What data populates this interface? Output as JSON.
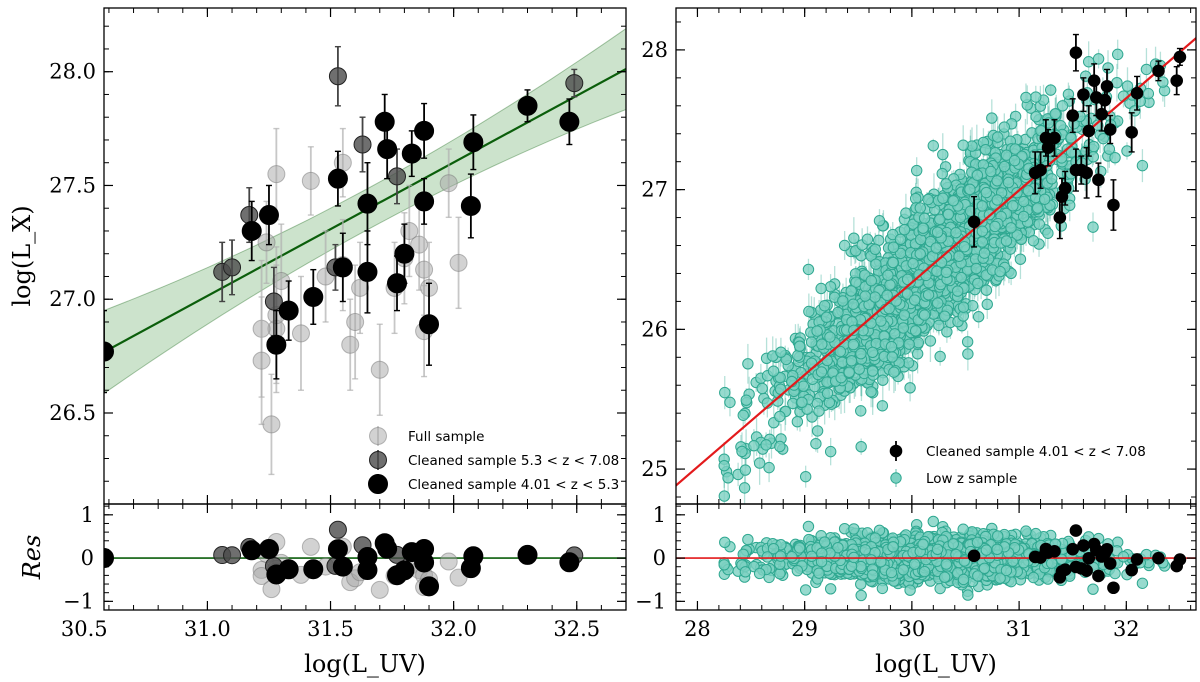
{
  "chart_data": [
    {
      "panel": "left",
      "type": "scatter",
      "xlabel": "log(L_UV)",
      "ylabel": "log(L_X)",
      "reslabel": "Res",
      "xlim": [
        30.58,
        32.7
      ],
      "ylim": [
        26.1,
        28.28
      ],
      "reslim": [
        -1.2,
        1.25
      ],
      "xticks": [
        "30.5",
        "31.0",
        "31.5",
        "32.0",
        "32.5"
      ],
      "yticks": [
        "26.5",
        "27.0",
        "27.5",
        "28.0"
      ],
      "resticks": [
        "1",
        "0",
        "−1"
      ],
      "fit": {
        "color": "#0b5e0b",
        "band_color": "#8fc28f",
        "slope": 0.5866,
        "intercept": 8.83,
        "band_left": 0.1,
        "band_right": 0.08
      },
      "series": [
        {
          "name": "Full sample",
          "style": "full",
          "points": [
            {
              "x": 31.28,
              "y": 27.55,
              "e": 0.2
            },
            {
              "x": 31.24,
              "y": 27.25,
              "e": 0.18
            },
            {
              "x": 31.28,
              "y": 26.87,
              "e": 0.28
            },
            {
              "x": 31.22,
              "y": 26.87,
              "e": 0.3
            },
            {
              "x": 31.22,
              "y": 26.73,
              "e": 0.28
            },
            {
              "x": 31.26,
              "y": 26.45,
              "e": 0.22
            },
            {
              "x": 31.3,
              "y": 27.08,
              "e": 0.25
            },
            {
              "x": 31.28,
              "y": 26.93,
              "e": 0.3
            },
            {
              "x": 31.38,
              "y": 26.85,
              "e": 0.25
            },
            {
              "x": 31.42,
              "y": 27.52,
              "e": 0.15
            },
            {
              "x": 31.48,
              "y": 27.1,
              "e": 0.2
            },
            {
              "x": 31.55,
              "y": 27.6,
              "e": 0.15
            },
            {
              "x": 31.55,
              "y": 27.15,
              "e": 0.2
            },
            {
              "x": 31.58,
              "y": 26.8,
              "e": 0.2
            },
            {
              "x": 31.6,
              "y": 26.9,
              "e": 0.25
            },
            {
              "x": 31.62,
              "y": 27.05,
              "e": 0.2
            },
            {
              "x": 31.7,
              "y": 26.69,
              "e": 0.2
            },
            {
              "x": 31.76,
              "y": 27.05,
              "e": 0.2
            },
            {
              "x": 31.8,
              "y": 27.18,
              "e": 0.2
            },
            {
              "x": 31.82,
              "y": 27.3,
              "e": 0.2
            },
            {
              "x": 31.86,
              "y": 27.24,
              "e": 0.2
            },
            {
              "x": 31.88,
              "y": 27.13,
              "e": 0.2
            },
            {
              "x": 31.9,
              "y": 27.05,
              "e": 0.2
            },
            {
              "x": 31.88,
              "y": 26.86,
              "e": 0.2
            },
            {
              "x": 31.98,
              "y": 27.51,
              "e": 0.15
            },
            {
              "x": 32.02,
              "y": 27.16,
              "e": 0.2
            }
          ]
        },
        {
          "name": "Cleaned sample 5.3 < z < 7.08",
          "style": "mid",
          "points": [
            {
              "x": 31.06,
              "y": 27.12,
              "e": 0.13
            },
            {
              "x": 31.1,
              "y": 27.14,
              "e": 0.12
            },
            {
              "x": 31.17,
              "y": 27.37,
              "e": 0.12
            },
            {
              "x": 31.27,
              "y": 26.99,
              "e": 0.15
            },
            {
              "x": 31.53,
              "y": 27.98,
              "e": 0.13
            },
            {
              "x": 31.52,
              "y": 27.14,
              "e": 0.1
            },
            {
              "x": 31.63,
              "y": 27.68,
              "e": 0.12
            },
            {
              "x": 31.77,
              "y": 27.54,
              "e": 0.12
            },
            {
              "x": 32.49,
              "y": 27.95,
              "e": 0.06
            }
          ]
        },
        {
          "name": "Cleaned sample 4.01 < z < 5.3",
          "style": "dark",
          "points": [
            {
              "x": 30.58,
              "y": 26.77,
              "e": 0.18
            },
            {
              "x": 31.18,
              "y": 27.3,
              "e": 0.13
            },
            {
              "x": 31.25,
              "y": 27.37,
              "e": 0.13
            },
            {
              "x": 31.28,
              "y": 26.8,
              "e": 0.15
            },
            {
              "x": 31.33,
              "y": 26.95,
              "e": 0.13
            },
            {
              "x": 31.43,
              "y": 27.01,
              "e": 0.12
            },
            {
              "x": 31.53,
              "y": 27.53,
              "e": 0.12
            },
            {
              "x": 31.55,
              "y": 27.14,
              "e": 0.15
            },
            {
              "x": 31.65,
              "y": 27.12,
              "e": 0.18
            },
            {
              "x": 31.65,
              "y": 27.42,
              "e": 0.18
            },
            {
              "x": 31.72,
              "y": 27.78,
              "e": 0.12
            },
            {
              "x": 31.73,
              "y": 27.66,
              "e": 0.13
            },
            {
              "x": 31.77,
              "y": 27.07,
              "e": 0.12
            },
            {
              "x": 31.8,
              "y": 27.2,
              "e": 0.13
            },
            {
              "x": 31.83,
              "y": 27.64,
              "e": 0.1
            },
            {
              "x": 31.88,
              "y": 27.74,
              "e": 0.12
            },
            {
              "x": 31.88,
              "y": 27.43,
              "e": 0.1
            },
            {
              "x": 31.9,
              "y": 26.89,
              "e": 0.18
            },
            {
              "x": 32.07,
              "y": 27.41,
              "e": 0.14
            },
            {
              "x": 32.08,
              "y": 27.69,
              "e": 0.12
            },
            {
              "x": 32.3,
              "y": 27.85,
              "e": 0.07
            },
            {
              "x": 32.47,
              "y": 27.78,
              "e": 0.1
            }
          ]
        }
      ],
      "legend_position": "bottom-right",
      "legend": [
        {
          "style": "full",
          "label": "Full sample"
        },
        {
          "style": "mid",
          "label": "Cleaned sample 5.3 < z < 7.08"
        },
        {
          "style": "dark",
          "label": "Cleaned sample 4.01 < z < 5.3"
        }
      ]
    },
    {
      "panel": "right",
      "type": "scatter",
      "xlabel": "log(L_UV)",
      "ylabel": "",
      "reslabel": "",
      "xlim": [
        27.8,
        32.65
      ],
      "ylim": [
        24.75,
        28.3
      ],
      "reslim": [
        -1.2,
        1.25
      ],
      "xticks": [
        "28",
        "29",
        "30",
        "31",
        "32"
      ],
      "yticks": [
        "25",
        "26",
        "27",
        "28"
      ],
      "resticks": [
        "1",
        "0",
        "−1"
      ],
      "fit": {
        "color": "#e31a1c",
        "slope": 0.66,
        "intercept": 6.535
      },
      "low_z": {
        "name": "Low z sample",
        "count": 2200,
        "x_center": 30.2,
        "x_spread": 0.7,
        "x_range": [
          28.2,
          32.5
        ],
        "scatter_sd": 0.24,
        "fill": "#7dd1c2",
        "edge": "#2fa891",
        "seed": 7
      },
      "series": [
        {
          "name": "Cleaned sample 4.01 < z < 7.08",
          "style": "dark",
          "points": [
            {
              "x": 30.58,
              "y": 26.77,
              "e": 0.18
            },
            {
              "x": 31.15,
              "y": 27.12,
              "e": 0.15
            },
            {
              "x": 31.2,
              "y": 27.14,
              "e": 0.13
            },
            {
              "x": 31.25,
              "y": 27.37,
              "e": 0.13
            },
            {
              "x": 31.27,
              "y": 27.3,
              "e": 0.13
            },
            {
              "x": 31.33,
              "y": 27.37,
              "e": 0.13
            },
            {
              "x": 31.38,
              "y": 26.8,
              "e": 0.15
            },
            {
              "x": 31.4,
              "y": 26.95,
              "e": 0.13
            },
            {
              "x": 31.43,
              "y": 27.01,
              "e": 0.12
            },
            {
              "x": 31.5,
              "y": 27.53,
              "e": 0.12
            },
            {
              "x": 31.53,
              "y": 27.14,
              "e": 0.15
            },
            {
              "x": 31.53,
              "y": 27.98,
              "e": 0.13
            },
            {
              "x": 31.58,
              "y": 27.14,
              "e": 0.1
            },
            {
              "x": 31.6,
              "y": 27.68,
              "e": 0.12
            },
            {
              "x": 31.63,
              "y": 27.12,
              "e": 0.18
            },
            {
              "x": 31.65,
              "y": 27.42,
              "e": 0.18
            },
            {
              "x": 31.7,
              "y": 27.78,
              "e": 0.12
            },
            {
              "x": 31.72,
              "y": 27.66,
              "e": 0.13
            },
            {
              "x": 31.74,
              "y": 27.07,
              "e": 0.12
            },
            {
              "x": 31.77,
              "y": 27.54,
              "e": 0.12
            },
            {
              "x": 31.8,
              "y": 27.64,
              "e": 0.1
            },
            {
              "x": 31.82,
              "y": 27.74,
              "e": 0.12
            },
            {
              "x": 31.85,
              "y": 27.43,
              "e": 0.1
            },
            {
              "x": 31.88,
              "y": 26.89,
              "e": 0.18
            },
            {
              "x": 32.05,
              "y": 27.41,
              "e": 0.14
            },
            {
              "x": 32.1,
              "y": 27.69,
              "e": 0.12
            },
            {
              "x": 32.3,
              "y": 27.85,
              "e": 0.07
            },
            {
              "x": 32.47,
              "y": 27.78,
              "e": 0.1
            },
            {
              "x": 32.5,
              "y": 27.95,
              "e": 0.06
            }
          ]
        }
      ],
      "legend_position": "bottom-right",
      "legend": [
        {
          "style": "dark",
          "label": "Cleaned sample 4.01 < z < 7.08"
        },
        {
          "style": "lowz",
          "label": "Low z sample"
        }
      ]
    }
  ]
}
